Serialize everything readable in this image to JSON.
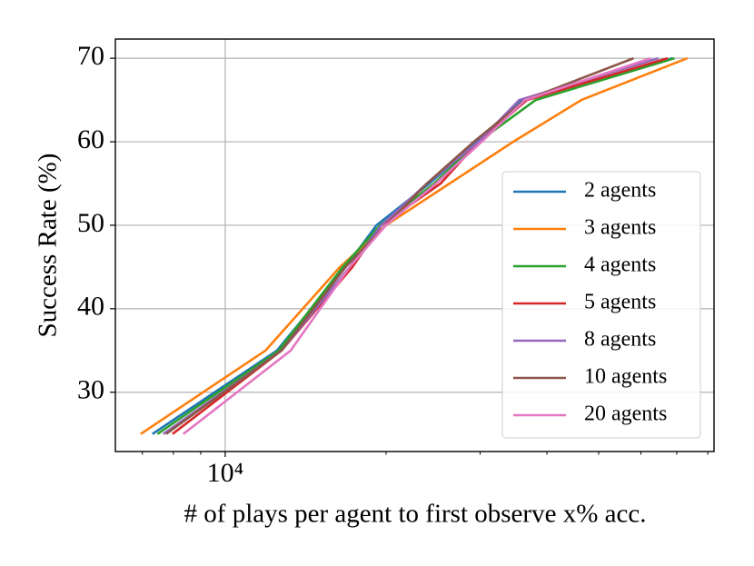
{
  "chart_data": {
    "type": "line",
    "x_label": "# of plays per agent to first observe x% acc.",
    "y_label": "Success Rate (%)",
    "x_scale": "log",
    "xlim": [
      6230,
      82200
    ],
    "ylim": [
      22.9,
      72.3
    ],
    "xticks": [
      {
        "value": 10000,
        "label": "10⁴"
      }
    ],
    "xminorticks": [
      7000,
      8000,
      9000,
      20000,
      30000,
      40000,
      50000,
      60000,
      70000,
      80000
    ],
    "yticks": [
      30,
      40,
      50,
      60,
      70
    ],
    "grid": true,
    "legend": "lower right",
    "series": [
      {
        "name": "2 agents",
        "color": "#1f77b4",
        "x": [
          7310,
          12500,
          16800,
          19200,
          24100,
          29600,
          36000,
          68700
        ],
        "values": [
          25,
          35,
          45,
          50,
          55,
          60,
          65,
          70
        ]
      },
      {
        "name": "3 agents",
        "color": "#ff7f0e",
        "x": [
          6950,
          11900,
          16400,
          20000,
          26300,
          34600,
          46400,
          73300
        ],
        "values": [
          25,
          35,
          45,
          50,
          55,
          60,
          65,
          70
        ]
      },
      {
        "name": "4 agents",
        "color": "#2ca02c",
        "x": [
          7470,
          12600,
          16600,
          19500,
          24600,
          29800,
          38100,
          69300
        ],
        "values": [
          25,
          35,
          45,
          50,
          55,
          60,
          65,
          70
        ]
      },
      {
        "name": "5 agents",
        "color": "#d62728",
        "x": [
          7970,
          12750,
          17300,
          19600,
          25300,
          29800,
          36700,
          67300
        ],
        "values": [
          25,
          35,
          45,
          50,
          55,
          60,
          65,
          70
        ]
      },
      {
        "name": "8 agents",
        "color": "#9467bd",
        "x": [
          7660,
          12750,
          17100,
          19600,
          23850,
          29800,
          35500,
          64700
        ],
        "values": [
          25,
          35,
          45,
          50,
          55,
          60,
          65,
          70
        ]
      },
      {
        "name": "10 agents",
        "color": "#8c564b",
        "x": [
          7750,
          12750,
          16800,
          20000,
          23850,
          29200,
          36400,
          58100
        ],
        "values": [
          25,
          35,
          45,
          50,
          55,
          60,
          65,
          70
        ]
      },
      {
        "name": "20 agents",
        "color": "#e377c2",
        "x": [
          8350,
          13260,
          17100,
          20000,
          24800,
          30200,
          36400,
          62600
        ],
        "values": [
          25,
          35,
          45,
          50,
          55,
          60,
          65,
          70
        ]
      }
    ]
  }
}
